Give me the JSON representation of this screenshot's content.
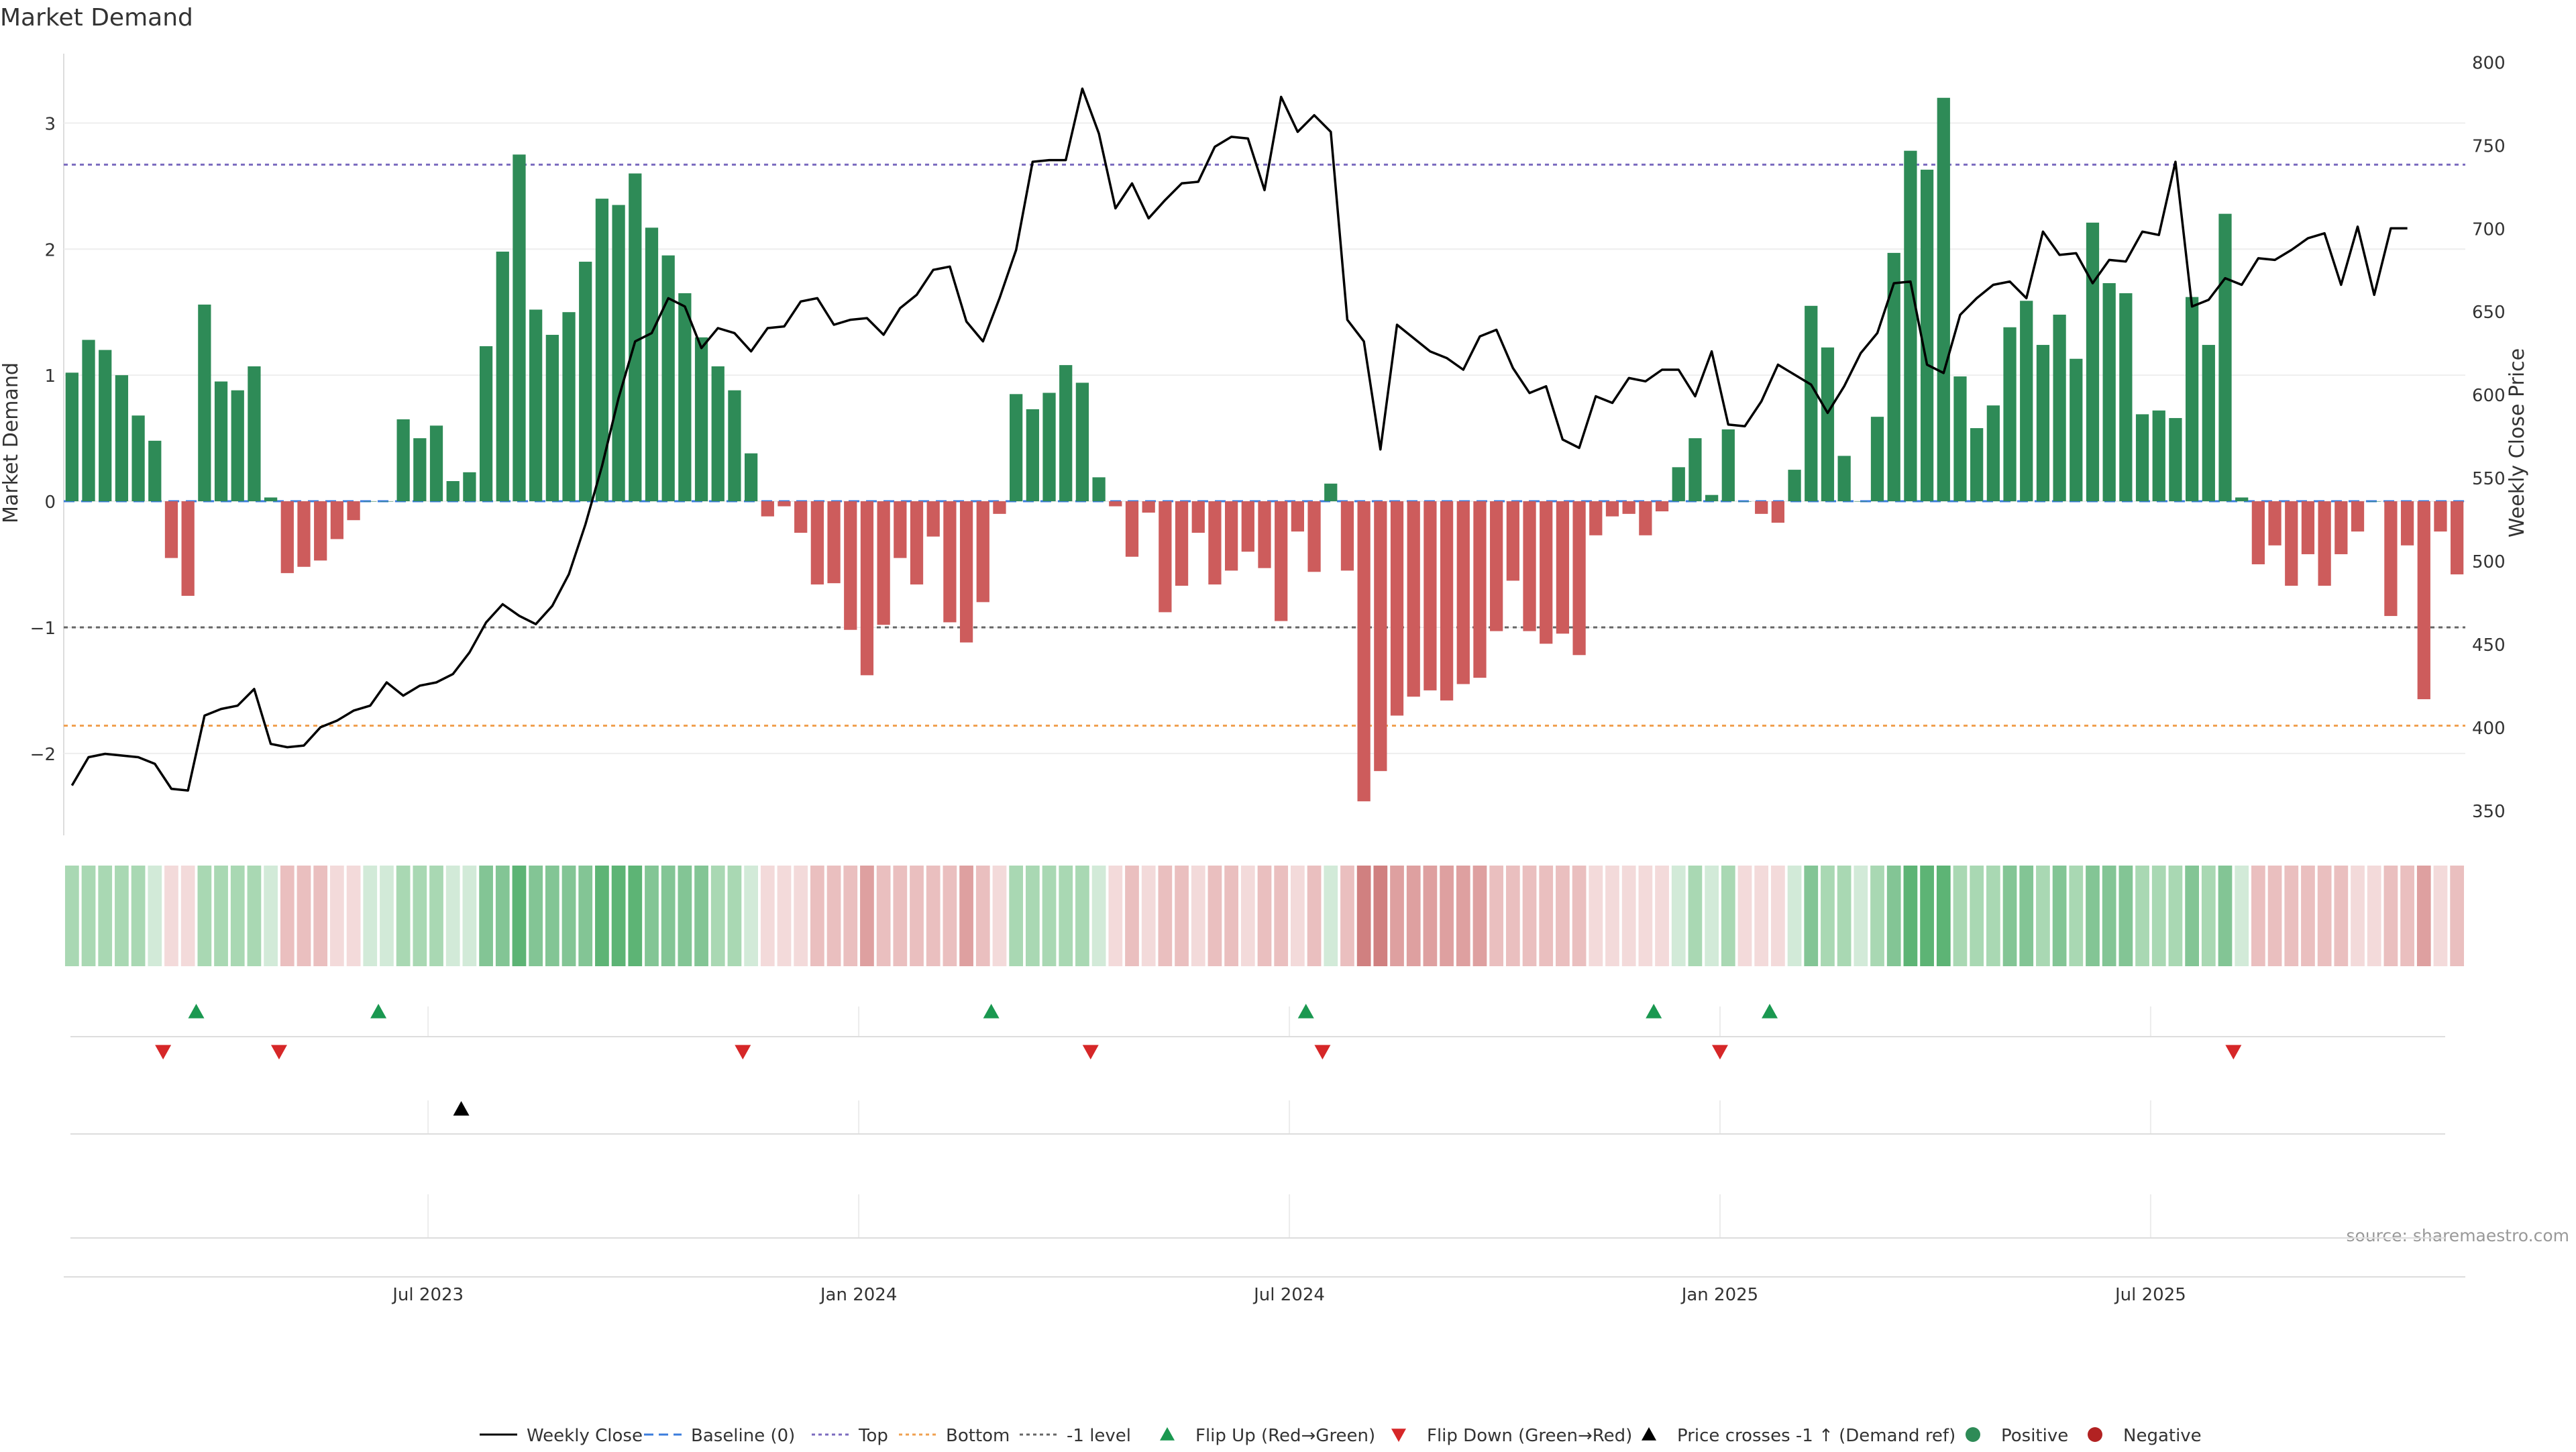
{
  "chart_data": {
    "type": "bar",
    "title": "Market Demand",
    "ylabel": "Market Demand",
    "y2label": "Weekly Close Price",
    "source": "source: sharemaestro.com",
    "ylim": [
      -2.65,
      3.55
    ],
    "y2lim": [
      335,
      805
    ],
    "yticks": [
      3,
      2,
      1,
      0,
      -1,
      -2
    ],
    "ytick_labels": [
      "3",
      "2",
      "1",
      "0",
      "−1",
      "−2"
    ],
    "y2ticks": [
      800,
      750,
      700,
      650,
      600,
      550,
      500,
      450,
      400,
      350
    ],
    "x_labels": [
      {
        "label": "Jul 2023",
        "week": 22
      },
      {
        "label": "Jan 2024",
        "week": 48
      },
      {
        "label": "Jul 2024",
        "week": 74
      },
      {
        "label": "Jan 2025",
        "week": 100
      },
      {
        "label": "Jul 2025",
        "week": 126
      }
    ],
    "reference_lines": {
      "top": 2.67,
      "bottom": -1.78,
      "minus_one": -1.0,
      "baseline": 0
    },
    "demand": [
      1.02,
      1.28,
      1.2,
      1.0,
      0.68,
      0.48,
      -0.45,
      -0.75,
      1.56,
      0.95,
      0.88,
      1.07,
      0.03,
      -0.57,
      -0.52,
      -0.47,
      -0.3,
      -0.15,
      0.0,
      0.0,
      0.65,
      0.5,
      0.6,
      0.16,
      0.23,
      1.23,
      1.98,
      2.75,
      1.52,
      1.32,
      1.5,
      1.9,
      2.4,
      2.35,
      2.6,
      2.17,
      1.95,
      1.65,
      1.3,
      1.07,
      0.88,
      0.38,
      -0.12,
      -0.04,
      -0.25,
      -0.66,
      -0.65,
      -1.02,
      -1.38,
      -0.98,
      -0.45,
      -0.66,
      -0.28,
      -0.96,
      -1.12,
      -0.8,
      -0.1,
      0.85,
      0.73,
      0.86,
      1.08,
      0.94,
      0.19,
      -0.04,
      -0.44,
      -0.09,
      -0.88,
      -0.67,
      -0.25,
      -0.66,
      -0.55,
      -0.4,
      -0.53,
      -0.95,
      -0.24,
      -0.56,
      0.14,
      -0.55,
      -2.38,
      -2.14,
      -1.7,
      -1.55,
      -1.5,
      -1.58,
      -1.45,
      -1.4,
      -1.03,
      -0.63,
      -1.03,
      -1.13,
      -1.05,
      -1.22,
      -0.27,
      -0.12,
      -0.1,
      -0.27,
      -0.08,
      0.27,
      0.5,
      0.05,
      0.57,
      0.0,
      -0.1,
      -0.17,
      0.25,
      1.55,
      1.22,
      0.36,
      0.0,
      0.67,
      1.97,
      2.78,
      2.63,
      3.2,
      0.99,
      0.58,
      0.76,
      1.38,
      1.59,
      1.24,
      1.48,
      1.13,
      2.21,
      1.73,
      1.65,
      0.69,
      0.72,
      0.66,
      1.62,
      1.24,
      2.28,
      0.03,
      -0.5,
      -0.35,
      -0.67,
      -0.42,
      -0.67,
      -0.42,
      -0.24,
      0.0,
      -0.91,
      -0.35,
      -1.57,
      -0.24,
      -0.58
    ],
    "weekly_close": [
      365,
      382,
      384,
      383,
      382,
      378,
      363,
      362,
      407,
      411,
      413,
      423,
      390,
      388,
      389,
      400,
      404,
      410,
      413,
      427,
      419,
      425,
      427,
      432,
      445,
      463,
      474,
      467,
      462,
      473,
      492,
      522,
      557,
      598,
      632,
      637,
      658,
      653,
      628,
      640,
      637,
      626,
      640,
      641,
      656,
      658,
      642,
      645,
      646,
      636,
      652,
      660,
      675,
      677,
      644,
      632,
      658,
      687,
      740,
      741,
      741,
      784,
      757,
      712,
      727,
      706,
      717,
      727,
      728,
      749,
      755,
      754,
      723,
      779,
      758,
      768,
      758,
      645,
      632,
      567,
      642,
      634,
      626,
      622,
      615,
      635,
      639,
      616,
      601,
      605,
      573,
      568,
      599,
      595,
      610,
      608,
      615,
      615,
      599,
      626,
      582,
      581,
      596,
      618,
      612,
      606,
      589,
      605,
      625,
      637,
      667,
      668,
      618,
      613,
      648,
      658,
      666,
      668,
      658,
      698,
      684,
      685,
      667,
      681,
      680,
      698,
      696,
      740,
      653,
      657,
      670,
      666,
      682,
      681,
      687,
      694,
      697,
      666,
      701,
      660,
      700,
      700
    ],
    "heat_shade": [
      2,
      2,
      2,
      2,
      2,
      1,
      -1,
      -1,
      2,
      2,
      2,
      2,
      1,
      -2,
      -2,
      -2,
      -1,
      -1,
      1,
      1,
      2,
      2,
      2,
      1,
      1,
      3,
      3,
      4,
      3,
      3,
      3,
      3,
      4,
      4,
      4,
      3,
      3,
      3,
      3,
      2,
      2,
      1,
      -1,
      -1,
      -1,
      -2,
      -2,
      -2,
      -3,
      -2,
      -2,
      -2,
      -2,
      -2,
      -3,
      -2,
      -1,
      2,
      2,
      2,
      2,
      2,
      1,
      -1,
      -2,
      -1,
      -2,
      -2,
      -1,
      -2,
      -2,
      -1,
      -2,
      -2,
      -1,
      -2,
      1,
      -2,
      -4,
      -4,
      -3,
      -3,
      -3,
      -3,
      -3,
      -3,
      -2,
      -2,
      -2,
      -2,
      -2,
      -2,
      -1,
      -1,
      -1,
      -1,
      -1,
      1,
      2,
      1,
      2,
      -1,
      -1,
      -1,
      1,
      3,
      2,
      2,
      1,
      2,
      3,
      4,
      4,
      4,
      2,
      2,
      2,
      3,
      3,
      2,
      3,
      2,
      3,
      3,
      3,
      2,
      2,
      2,
      3,
      2,
      3,
      1,
      -2,
      -2,
      -2,
      -2,
      -2,
      -2,
      -1,
      -1,
      -2,
      -2,
      -3,
      -1,
      -2
    ],
    "flip_up_weeks": [
      8,
      19,
      56,
      75,
      96,
      103
    ],
    "flip_down_weeks": [
      6,
      13,
      41,
      62,
      76,
      100,
      131
    ],
    "price_cross_weeks": [
      24
    ],
    "colors": {
      "positive": "#2e8b57",
      "negative": "#cd5c5c",
      "line": "#000000",
      "flip_up": "#1a9850",
      "flip_down": "#d62728",
      "top": "#7b6bbf",
      "bottom": "#f0a050",
      "minus_one": "#666666",
      "baseline": "#3b7ddd"
    },
    "legend": [
      {
        "label": "Weekly Close",
        "kind": "solid",
        "color": "#000000"
      },
      {
        "label": "Baseline (0)",
        "kind": "dashed",
        "color": "#3b7ddd"
      },
      {
        "label": "Top",
        "kind": "dotted",
        "color": "#7b6bbf"
      },
      {
        "label": "Bottom",
        "kind": "dotted",
        "color": "#f0a050"
      },
      {
        "label": "-1 level",
        "kind": "dotted",
        "color": "#666666"
      },
      {
        "label": "Flip Up (Red→Green)",
        "kind": "tri-up",
        "color": "#1a9850"
      },
      {
        "label": "Flip Down (Green→Red)",
        "kind": "tri-down",
        "color": "#d62728"
      },
      {
        "label": "Price crosses -1 ↑ (Demand ref)",
        "kind": "tri-up",
        "color": "#000000"
      },
      {
        "label": "Positive",
        "kind": "dot",
        "color": "#2e8b57"
      },
      {
        "label": "Negative",
        "kind": "dot",
        "color": "#b22222"
      }
    ]
  }
}
